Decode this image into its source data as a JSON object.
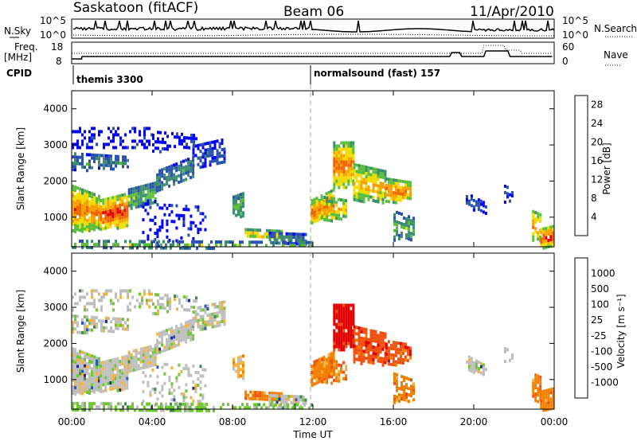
{
  "header": {
    "title": "Saskatoon (fitACF)",
    "beam": "Beam 06",
    "date": "11/Apr/2010"
  },
  "strip": {
    "nsky_label": "N.Sky",
    "nsearch_label": "N.Search",
    "noise_ticks_left": [
      "10^5",
      "10^0"
    ],
    "noise_ticks_right": [
      "10^5",
      "10^0"
    ],
    "freq_label": "Freq.",
    "freq_unit": "[MHz]",
    "freq_ticks": [
      "18",
      "8"
    ],
    "nave_label": "Nave",
    "nave_ticks": [
      "60",
      "0"
    ],
    "cpid_label": "CPID",
    "cpid_segments": [
      "themis 3300",
      "normalsound (fast) 157"
    ]
  },
  "colors": {
    "power_scale": [
      "#0000ff",
      "#2a50b0",
      "#3c8c6e",
      "#5abe3c",
      "#f0dc00",
      "#f8a000",
      "#f06400",
      "#e00000"
    ],
    "velocity_scale": [
      "#1e2ca0",
      "#2a58b8",
      "#3c8c50",
      "#6ec832",
      "#bebebe",
      "#f5b040",
      "#f08000",
      "#f05010",
      "#e00000"
    ]
  },
  "chart_data": [
    {
      "type": "heatmap",
      "title": "",
      "ylabel": "Slant Range [km]",
      "xlabel": "",
      "xlim": [
        "00:00",
        "00:00"
      ],
      "ylim": [
        180,
        4500
      ],
      "y_ticks": [
        "4000",
        "3000",
        "2000",
        "1000"
      ],
      "x_ticks": [
        "00:00",
        "04:00",
        "08:00",
        "12:00",
        "16:00",
        "20:00",
        "00:00"
      ],
      "colorbar": {
        "label": "Power [dB]",
        "ticks": [
          "28",
          "24",
          "20",
          "16",
          "12",
          "8",
          "4"
        ],
        "range": [
          0,
          30
        ]
      }
    },
    {
      "type": "heatmap",
      "title": "",
      "ylabel": "Slant Range [km]",
      "xlabel": "Time UT",
      "xlim": [
        "00:00",
        "00:00"
      ],
      "ylim": [
        180,
        4500
      ],
      "y_ticks": [
        "4000",
        "3000",
        "2000",
        "1000"
      ],
      "x_ticks": [
        "00:00",
        "04:00",
        "08:00",
        "12:00",
        "16:00",
        "20:00",
        "00:00"
      ],
      "colorbar": {
        "label": "Velocity [m s⁻¹]",
        "ticks": [
          "1000",
          "500",
          "100",
          "25",
          "-25",
          "-100",
          "-500",
          "-1000"
        ],
        "range": [
          -1000,
          1000
        ]
      }
    }
  ]
}
